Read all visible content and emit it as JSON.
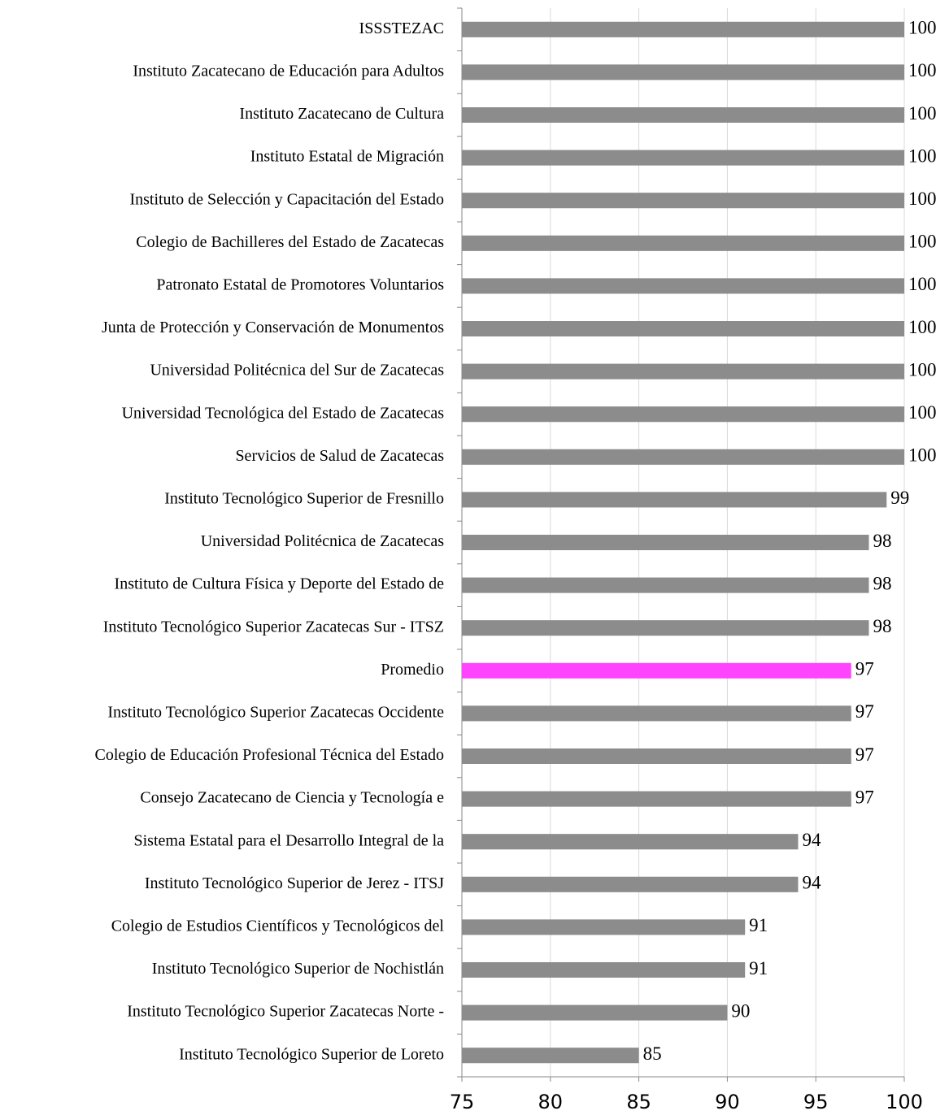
{
  "chart_data": {
    "type": "bar",
    "orientation": "horizontal",
    "categories": [
      "ISSSTEZAC",
      "Instituto Zacatecano de Educación para Adultos",
      "Instituto Zacatecano de Cultura",
      "Instituto Estatal de Migración",
      "Instituto de Selección y Capacitación del Estado",
      "Colegio de Bachilleres del Estado de Zacatecas",
      "Patronato Estatal de Promotores Voluntarios",
      "Junta de Protección y Conservación de Monumentos",
      "Universidad Politécnica del Sur de Zacatecas",
      "Universidad Tecnológica del Estado de Zacatecas",
      "Servicios de Salud de Zacatecas",
      "Instituto Tecnológico Superior de Fresnillo",
      "Universidad Politécnica de Zacatecas",
      "Instituto de Cultura Física y Deporte del Estado de",
      "Instituto Tecnológico Superior Zacatecas Sur - ITSZ",
      "Promedio",
      "Instituto Tecnológico Superior Zacatecas Occidente",
      "Colegio de Educación Profesional Técnica del Estado",
      "Consejo Zacatecano de Ciencia y Tecnología e",
      "Sistema Estatal para el Desarrollo Integral de la",
      "Instituto Tecnológico Superior de Jerez - ITSJ",
      "Colegio de Estudios Científicos y Tecnológicos del",
      "Instituto Tecnológico Superior de Nochistlán",
      "Instituto Tecnológico Superior Zacatecas Norte -",
      "Instituto Tecnológico Superior de Loreto"
    ],
    "values": [
      100,
      100,
      100,
      100,
      100,
      100,
      100,
      100,
      100,
      100,
      100,
      99,
      98,
      98,
      98,
      97,
      97,
      97,
      97,
      94,
      94,
      91,
      91,
      90,
      85
    ],
    "colors": [
      "#8c8c8c",
      "#8c8c8c",
      "#8c8c8c",
      "#8c8c8c",
      "#8c8c8c",
      "#8c8c8c",
      "#8c8c8c",
      "#8c8c8c",
      "#8c8c8c",
      "#8c8c8c",
      "#8c8c8c",
      "#8c8c8c",
      "#8c8c8c",
      "#8c8c8c",
      "#8c8c8c",
      "#ff44ff",
      "#8c8c8c",
      "#8c8c8c",
      "#8c8c8c",
      "#8c8c8c",
      "#8c8c8c",
      "#8c8c8c",
      "#8c8c8c",
      "#8c8c8c",
      "#8c8c8c"
    ],
    "xlim": [
      75,
      100
    ],
    "xticks": [
      75,
      80,
      85,
      90,
      95,
      100
    ],
    "grid": true
  }
}
